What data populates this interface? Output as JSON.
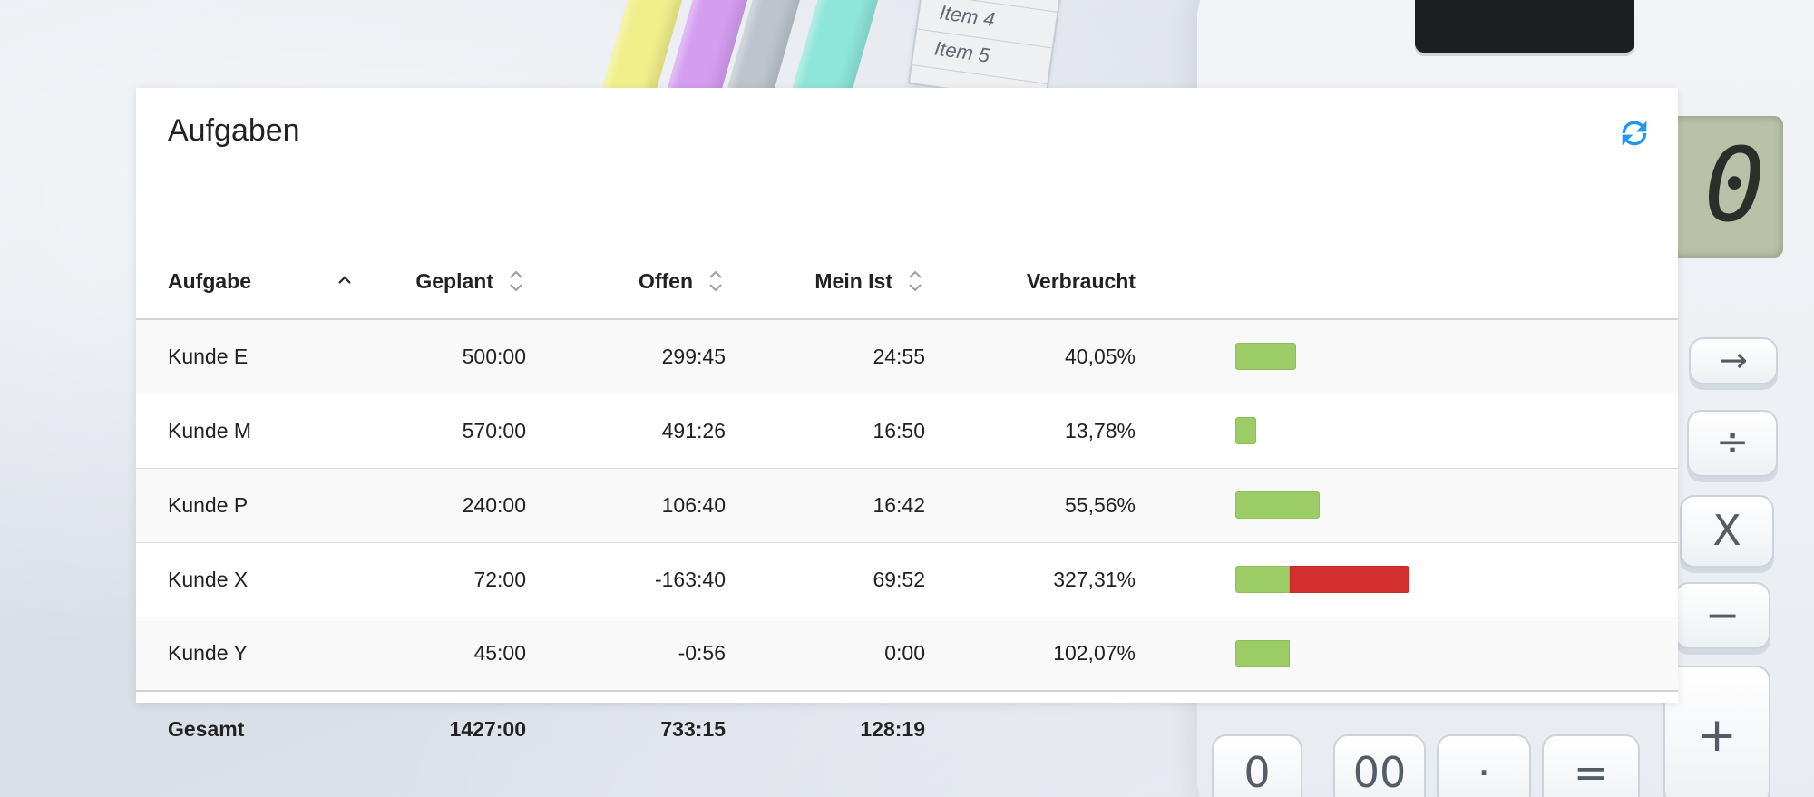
{
  "background": {
    "notepad_items": [
      "Item 4",
      "Item 5"
    ],
    "calculator_display": "0",
    "calculator_keys": [
      "→",
      "÷",
      "X",
      "−",
      "+",
      "0",
      "00",
      "·",
      "="
    ]
  },
  "widget": {
    "title": "Aufgaben",
    "refresh_icon": "refresh-icon"
  },
  "table": {
    "columns": {
      "task": "Aufgabe",
      "planned": "Geplant",
      "open": "Offen",
      "my_actual": "Mein Ist",
      "used": "Verbraucht"
    },
    "sort": {
      "column": "Aufgabe",
      "direction": "ascending"
    },
    "rows": [
      {
        "task": "Kunde E",
        "planned": "500:00",
        "open": "299:45",
        "my_actual": "24:55",
        "used": "40,05%",
        "used_value": 40.05
      },
      {
        "task": "Kunde M",
        "planned": "570:00",
        "open": "491:26",
        "my_actual": "16:50",
        "used": "13,78%",
        "used_value": 13.78
      },
      {
        "task": "Kunde P",
        "planned": "240:00",
        "open": "106:40",
        "my_actual": "16:42",
        "used": "55,56%",
        "used_value": 55.56
      },
      {
        "task": "Kunde X",
        "planned": "72:00",
        "open": "-163:40",
        "my_actual": "69:52",
        "used": "327,31%",
        "used_value": 327.31
      },
      {
        "task": "Kunde Y",
        "planned": "45:00",
        "open": "-0:56",
        "my_actual": "0:00",
        "used": "102,07%",
        "used_value": 102.07
      }
    ],
    "total": {
      "label": "Gesamt",
      "planned": "1427:00",
      "open": "733:15",
      "my_actual": "128:19"
    },
    "bar_colors": {
      "within_budget": "#9ccc65",
      "over_budget": "#d32f2f"
    }
  }
}
